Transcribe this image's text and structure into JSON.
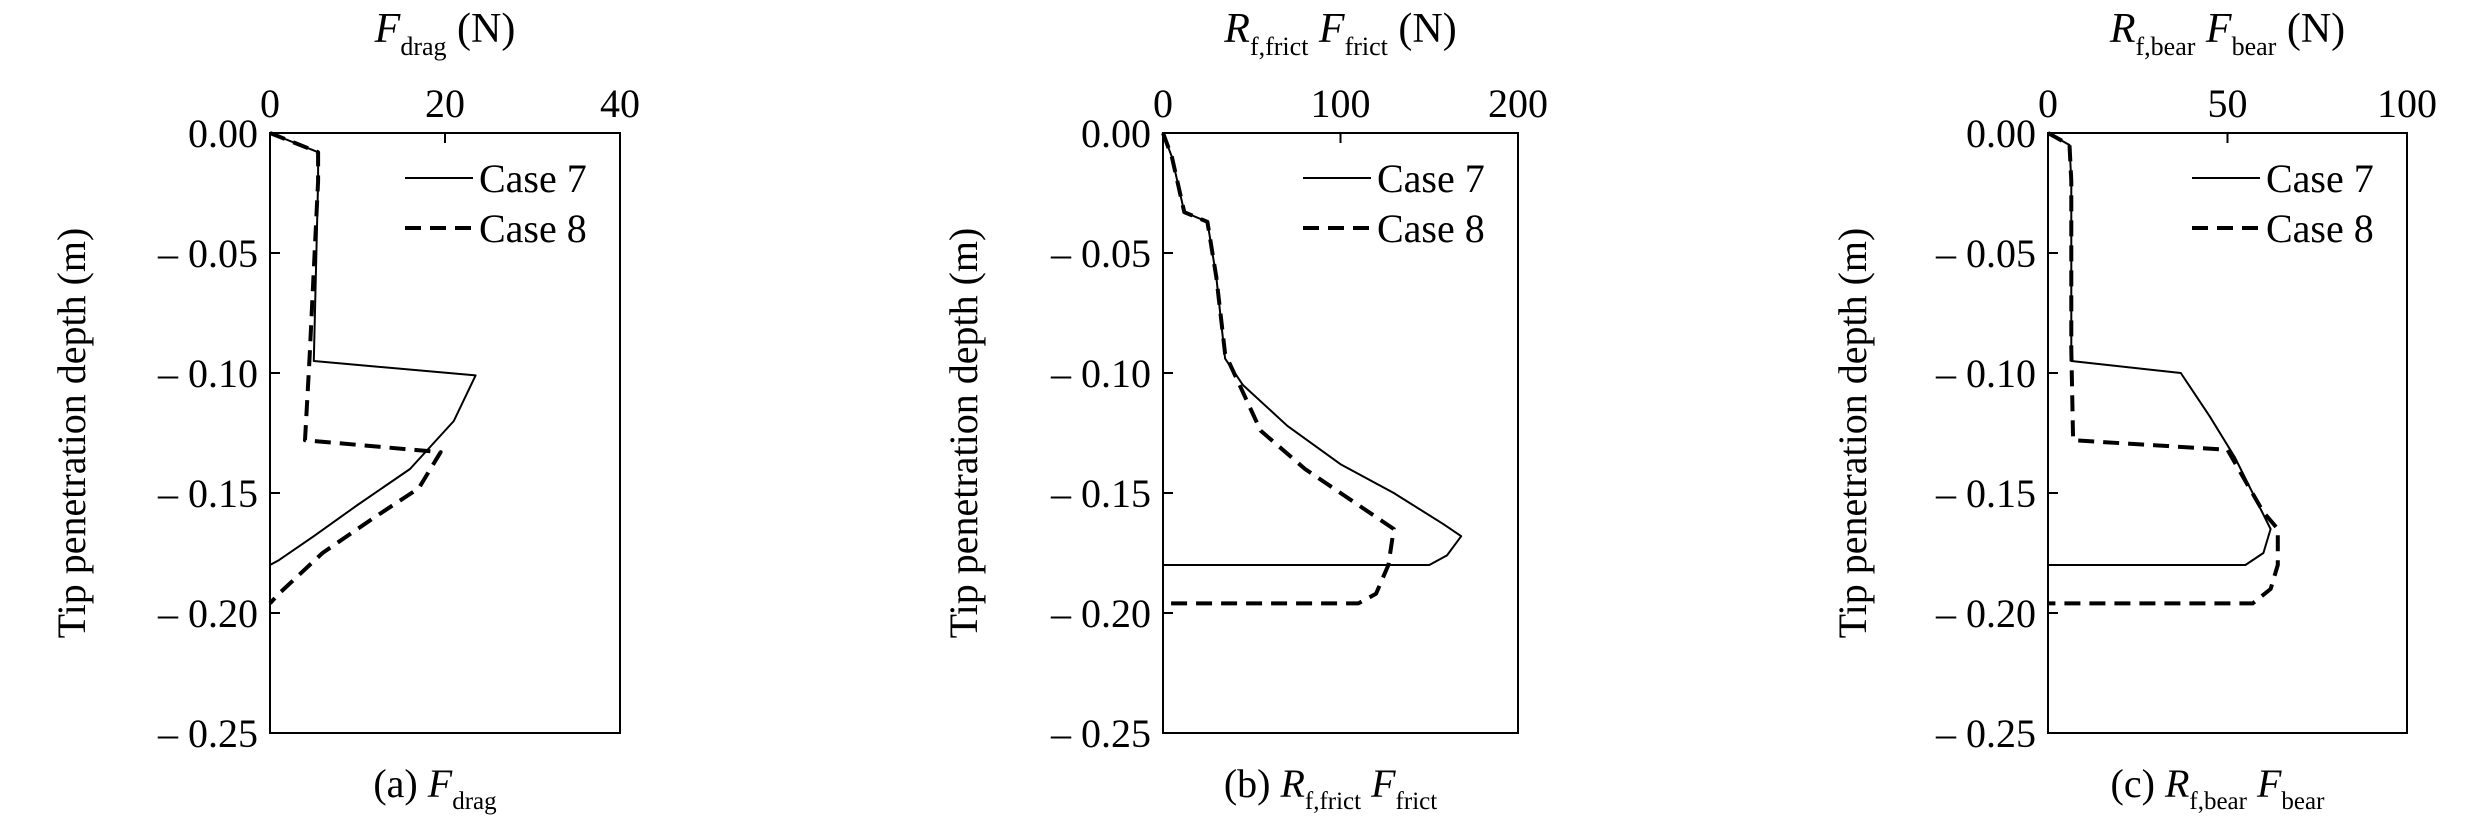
{
  "figure": {
    "y_axis_label": "Tip penetration depth (m)",
    "legend": {
      "case7": "Case 7",
      "case8": "Case 8"
    }
  },
  "chart_data": [
    {
      "type": "line",
      "panel_caption": {
        "prefix": "(a) ",
        "main": "F",
        "sub": "drag"
      },
      "xlabel": {
        "main": "F",
        "sub": "drag",
        "unit": "(N)"
      },
      "ylabel": "Tip penetration depth (m)",
      "x_ticks": [
        "0",
        "20",
        "40"
      ],
      "y_ticks": [
        "0.00",
        "– 0.05",
        "– 0.10",
        "– 0.15",
        "– 0.20",
        "– 0.25"
      ],
      "xlim": [
        0,
        40
      ],
      "ylim": [
        -0.25,
        0
      ],
      "x_axis_position": "top",
      "legend_position": "top-right",
      "series": [
        {
          "name": "Case 7",
          "style": "solid",
          "points": [
            [
              0,
              0
            ],
            [
              5.5,
              -0.008
            ],
            [
              5.5,
              -0.02
            ],
            [
              5.0,
              -0.095
            ],
            [
              23.5,
              -0.101
            ],
            [
              21,
              -0.12
            ],
            [
              16,
              -0.14
            ],
            [
              10,
              -0.155
            ],
            [
              5,
              -0.168
            ],
            [
              1,
              -0.178
            ],
            [
              0,
              -0.18
            ]
          ]
        },
        {
          "name": "Case 8",
          "style": "dashed",
          "points": [
            [
              0,
              0
            ],
            [
              5.5,
              -0.008
            ],
            [
              5.5,
              -0.02
            ],
            [
              4.5,
              -0.095
            ],
            [
              4.0,
              -0.128
            ],
            [
              19.5,
              -0.133
            ],
            [
              17,
              -0.148
            ],
            [
              12,
              -0.16
            ],
            [
              6,
              -0.175
            ],
            [
              1,
              -0.192
            ],
            [
              0,
              -0.196
            ]
          ]
        }
      ]
    },
    {
      "type": "line",
      "panel_caption": {
        "prefix": "(b) ",
        "main": "R",
        "sub": "f,frict",
        "main2": " F",
        "sub2": "frict"
      },
      "xlabel": {
        "main": "R",
        "sub": "f,frict",
        "main2": " F",
        "sub2": "frict",
        "unit": "(N)"
      },
      "ylabel": "Tip penetration depth (m)",
      "x_ticks": [
        "0",
        "100",
        "200"
      ],
      "y_ticks": [
        "0.00",
        "– 0.05",
        "– 0.10",
        "– 0.15",
        "– 0.20",
        "– 0.25"
      ],
      "xlim": [
        0,
        200
      ],
      "ylim": [
        -0.25,
        0
      ],
      "x_axis_position": "top",
      "legend_position": "top-right",
      "series": [
        {
          "name": "Case 7",
          "style": "solid",
          "points": [
            [
              0,
              0
            ],
            [
              5,
              -0.01
            ],
            [
              12,
              -0.033
            ],
            [
              25,
              -0.037
            ],
            [
              30,
              -0.06
            ],
            [
              35,
              -0.094
            ],
            [
              45,
              -0.105
            ],
            [
              70,
              -0.122
            ],
            [
              100,
              -0.138
            ],
            [
              130,
              -0.15
            ],
            [
              158,
              -0.163
            ],
            [
              168,
              -0.168
            ],
            [
              160,
              -0.176
            ],
            [
              150,
              -0.18
            ],
            [
              0,
              -0.18
            ]
          ]
        },
        {
          "name": "Case 8",
          "style": "dashed",
          "points": [
            [
              0,
              0
            ],
            [
              5,
              -0.01
            ],
            [
              12,
              -0.033
            ],
            [
              25,
              -0.037
            ],
            [
              30,
              -0.06
            ],
            [
              35,
              -0.092
            ],
            [
              45,
              -0.108
            ],
            [
              55,
              -0.124
            ],
            [
              80,
              -0.14
            ],
            [
              110,
              -0.155
            ],
            [
              130,
              -0.165
            ],
            [
              127,
              -0.18
            ],
            [
              120,
              -0.192
            ],
            [
              110,
              -0.196
            ],
            [
              0,
              -0.196
            ]
          ]
        }
      ]
    },
    {
      "type": "line",
      "panel_caption": {
        "prefix": "(c) ",
        "main": "R",
        "sub": "f,bear",
        "main2": " F",
        "sub2": "bear"
      },
      "xlabel": {
        "main": "R",
        "sub": "f,bear",
        "main2": " F",
        "sub2": "bear",
        "unit": "(N)"
      },
      "ylabel": "Tip penetration depth (m)",
      "x_ticks": [
        "0",
        "50",
        "100"
      ],
      "y_ticks": [
        "0.00",
        "– 0.05",
        "– 0.10",
        "– 0.15",
        "– 0.20",
        "– 0.25"
      ],
      "xlim": [
        0,
        100
      ],
      "ylim": [
        -0.25,
        0
      ],
      "x_axis_position": "top",
      "legend_position": "top-right",
      "series": [
        {
          "name": "Case 7",
          "style": "solid",
          "points": [
            [
              0,
              0
            ],
            [
              6,
              -0.005
            ],
            [
              6.5,
              -0.02
            ],
            [
              6.5,
              -0.095
            ],
            [
              37,
              -0.1
            ],
            [
              45,
              -0.118
            ],
            [
              52,
              -0.135
            ],
            [
              58,
              -0.153
            ],
            [
              62,
              -0.165
            ],
            [
              60,
              -0.175
            ],
            [
              55,
              -0.18
            ],
            [
              0,
              -0.18
            ]
          ]
        },
        {
          "name": "Case 8",
          "style": "dashed",
          "points": [
            [
              0,
              0
            ],
            [
              6,
              -0.005
            ],
            [
              6.5,
              -0.02
            ],
            [
              6.5,
              -0.09
            ],
            [
              7,
              -0.128
            ],
            [
              50,
              -0.132
            ],
            [
              55,
              -0.145
            ],
            [
              60,
              -0.158
            ],
            [
              64,
              -0.165
            ],
            [
              64,
              -0.18
            ],
            [
              62,
              -0.19
            ],
            [
              57,
              -0.196
            ],
            [
              0,
              -0.196
            ]
          ]
        }
      ]
    }
  ]
}
